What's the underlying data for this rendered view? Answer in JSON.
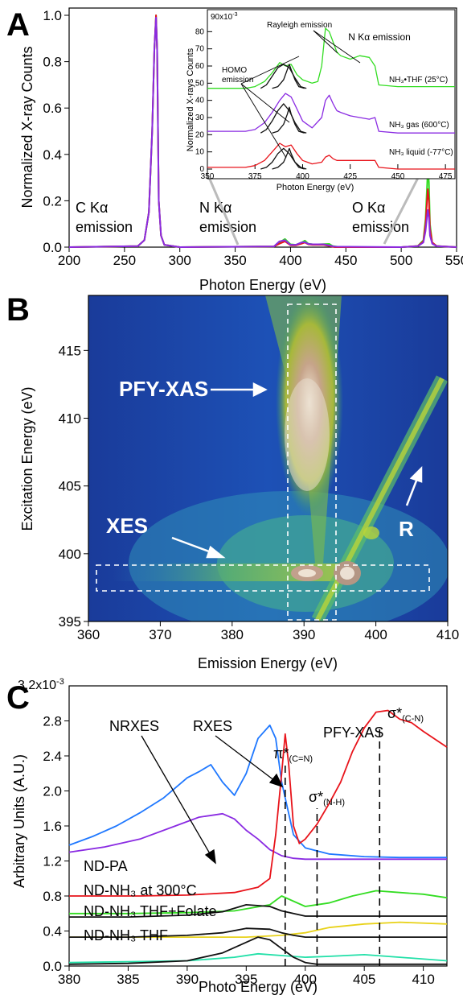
{
  "colors": {
    "red": "#e8141b",
    "purple": "#8a2be2",
    "green": "#33dd22",
    "blue": "#1f78ff",
    "black": "#111111",
    "yellow": "#e8d21a",
    "teal": "#22e0a8",
    "gray": "#bbbbbb"
  },
  "chart_data": [
    {
      "type": "line",
      "panel": "A",
      "xlabel": "Photon Energy (eV)",
      "ylabel": "Normalized X-ray Counts",
      "xlim": [
        200,
        550
      ],
      "ylim": [
        0,
        1.0
      ],
      "xticks": [
        "200",
        "250",
        "300",
        "350",
        "400",
        "450",
        "500",
        "550"
      ],
      "yticks": [
        "0.0",
        "0.2",
        "0.4",
        "0.6",
        "0.8",
        "1.0"
      ],
      "annotations": [
        {
          "line1": "C Kα",
          "line2": "emission"
        },
        {
          "line1": "N Kα",
          "line2": "emission"
        },
        {
          "line1": "O Kα",
          "line2": "emission"
        }
      ],
      "series": [
        {
          "color": "green",
          "x": [
            200,
            262,
            268,
            272,
            275,
            277,
            278.5,
            279.5,
            281,
            283,
            286,
            300,
            385,
            390,
            395,
            400,
            405,
            410,
            413,
            416,
            420,
            425,
            430,
            435,
            438,
            445,
            500,
            515,
            520,
            522,
            524,
            525,
            526,
            528,
            532,
            550
          ],
          "y": [
            0,
            0.004,
            0.03,
            0.15,
            0.5,
            0.85,
            1.0,
            0.85,
            0.2,
            0.05,
            0.01,
            0,
            0.003,
            0.02,
            0.035,
            0.012,
            0.01,
            0.02,
            0.028,
            0.015,
            0.012,
            0.012,
            0.013,
            0.014,
            0.005,
            0,
            0,
            0.005,
            0.03,
            0.12,
            0.33,
            0.28,
            0.1,
            0.02,
            0.005,
            0
          ]
        },
        {
          "color": "red",
          "x": [
            200,
            262,
            268,
            272,
            275,
            277,
            278.5,
            279.5,
            281,
            283,
            286,
            300,
            385,
            390,
            395,
            400,
            405,
            410,
            413,
            416,
            420,
            430,
            440,
            500,
            515,
            520,
            522,
            524,
            525,
            526,
            528,
            532,
            550
          ],
          "y": [
            0,
            0.004,
            0.03,
            0.15,
            0.5,
            0.85,
            1.0,
            0.85,
            0.2,
            0.05,
            0.01,
            0,
            0.003,
            0.015,
            0.025,
            0.008,
            0.008,
            0.015,
            0.02,
            0.012,
            0.01,
            0.01,
            0.0,
            0,
            0.005,
            0.025,
            0.1,
            0.25,
            0.2,
            0.08,
            0.02,
            0.005,
            0
          ]
        },
        {
          "color": "purple",
          "x": [
            200,
            262,
            268,
            272,
            275,
            277,
            278.5,
            279.5,
            281,
            283,
            286,
            300,
            385,
            390,
            395,
            400,
            405,
            410,
            413,
            416,
            420,
            430,
            440,
            500,
            515,
            520,
            522,
            524,
            525,
            526,
            528,
            532,
            550
          ],
          "y": [
            0,
            0.004,
            0.03,
            0.15,
            0.5,
            0.85,
            0.99,
            0.85,
            0.2,
            0.05,
            0.01,
            0,
            0.003,
            0.025,
            0.03,
            0.01,
            0.01,
            0.02,
            0.022,
            0.014,
            0.012,
            0.012,
            0.002,
            0,
            0.004,
            0.02,
            0.07,
            0.16,
            0.13,
            0.05,
            0.015,
            0.004,
            0
          ]
        }
      ]
    },
    {
      "type": "line",
      "panel": "A-inset",
      "xlabel": "Photon Energy (eV)",
      "ylabel": "Normalized X-rays Counts",
      "xlim": [
        350,
        480
      ],
      "ylim": [
        0,
        90
      ],
      "y_multiplier": "90x10",
      "y_multiplier_exp": "-3",
      "xticks": [
        "350",
        "375",
        "400",
        "425",
        "450",
        "475"
      ],
      "yticks": [
        "0",
        "10",
        "20",
        "30",
        "40",
        "50",
        "60",
        "70",
        "80"
      ],
      "title": "N Kα emission",
      "annotations": [
        "Rayleigh emission",
        "HOMO",
        "emission"
      ],
      "series": [
        {
          "color": "green",
          "name": "NH₃•THF (25°C)",
          "x": [
            350,
            360,
            370,
            375,
            380,
            384,
            388,
            391,
            394,
            397,
            400,
            405,
            408,
            410,
            412,
            414,
            416,
            418,
            420,
            425,
            430,
            435,
            438,
            440,
            450,
            465,
            470,
            475,
            480
          ],
          "y": [
            47,
            47,
            47,
            48,
            51,
            56,
            62,
            60,
            61,
            55,
            52,
            50,
            51,
            60,
            82,
            80,
            74,
            68,
            66,
            64,
            66,
            65,
            60,
            49,
            48,
            48,
            48,
            48,
            48
          ]
        },
        {
          "color": "purple",
          "name": "NH₃ gas (600°C)",
          "x": [
            350,
            360,
            370,
            375,
            380,
            384,
            388,
            391,
            394,
            397,
            400,
            405,
            410,
            412,
            414,
            416,
            418,
            420,
            425,
            430,
            435,
            438,
            440,
            450,
            465,
            480
          ],
          "y": [
            22,
            22,
            22,
            23,
            27,
            33,
            40,
            44,
            42,
            35,
            28,
            24,
            30,
            40,
            43,
            38,
            34,
            33,
            31,
            30,
            29,
            30,
            22,
            21,
            21,
            21
          ]
        },
        {
          "color": "red",
          "name": "NH₃ liquid (-77°C)",
          "x": [
            350,
            360,
            370,
            375,
            380,
            384,
            388,
            391,
            394,
            397,
            400,
            405,
            410,
            412,
            414,
            416,
            418,
            420,
            425,
            430,
            435,
            438,
            440,
            450,
            465,
            480
          ],
          "y": [
            1,
            1,
            1,
            2,
            5,
            10,
            15,
            13,
            14,
            9,
            5,
            3,
            4,
            7,
            8,
            6,
            5,
            5,
            5,
            5,
            5,
            5,
            1,
            0,
            0,
            0
          ]
        },
        {
          "color": "black",
          "x": [
            378,
            381,
            384,
            387,
            390,
            393,
            396,
            399,
            402
          ],
          "y": [
            47,
            49,
            54,
            59,
            61,
            59,
            53,
            48,
            47
          ]
        },
        {
          "color": "black",
          "x": [
            384,
            387,
            390,
            392,
            393,
            394,
            396,
            398,
            401
          ],
          "y": [
            47,
            48,
            52,
            58,
            61,
            58,
            52,
            48,
            47
          ]
        },
        {
          "color": "black",
          "x": [
            378,
            381,
            384,
            387,
            390,
            393,
            396,
            399,
            402
          ],
          "y": [
            21,
            23,
            28,
            34,
            38,
            34,
            27,
            22,
            21
          ]
        },
        {
          "color": "black",
          "x": [
            384,
            387,
            390,
            392,
            393,
            394,
            396,
            398,
            401
          ],
          "y": [
            21,
            22,
            26,
            32,
            36,
            32,
            26,
            22,
            21
          ]
        },
        {
          "color": "black",
          "x": [
            378,
            381,
            384,
            387,
            390,
            393,
            396,
            399,
            402
          ],
          "y": [
            0,
            1,
            4,
            9,
            12,
            9,
            4,
            1,
            0
          ]
        },
        {
          "color": "black",
          "x": [
            384,
            387,
            390,
            392,
            393,
            394,
            396,
            398,
            401
          ],
          "y": [
            0,
            1,
            4,
            9,
            12,
            9,
            4,
            1,
            0
          ]
        }
      ]
    },
    {
      "type": "heatmap",
      "panel": "B",
      "xlabel": "Emission Energy (eV)",
      "ylabel": "Excitation Energy (eV)",
      "xlim": [
        360,
        410
      ],
      "ylim": [
        395,
        419
      ],
      "xticks": [
        "360",
        "370",
        "380",
        "390",
        "400",
        "410"
      ],
      "yticks": [
        "395",
        "400",
        "405",
        "410",
        "415"
      ],
      "labels": [
        "PFY-XAS",
        "XES",
        "R"
      ]
    },
    {
      "type": "line",
      "panel": "C",
      "xlabel": "Photo Energy (eV)",
      "ylabel": "Arbitrary Units (A.U.)",
      "xlim": [
        380,
        412
      ],
      "ylim": [
        0,
        3.2
      ],
      "y_multiplier": "3.2x10",
      "y_multiplier_exp": "-3",
      "xticks": [
        "380",
        "385",
        "390",
        "395",
        "400",
        "405",
        "410"
      ],
      "yticks": [
        "0.0",
        "0.4",
        "0.8",
        "1.2",
        "1.6",
        "2.0",
        "2.4",
        "2.8"
      ],
      "curve_labels": [
        "NRXES",
        "RXES",
        "PFY-XAS"
      ],
      "resonances": [
        {
          "main": "π*",
          "sub": "(C=N)",
          "x": 398.3
        },
        {
          "main": "σ*",
          "sub": "(N-H)",
          "x": 401.0
        },
        {
          "main": "σ*",
          "sub": "(C-N)",
          "x": 406.3
        }
      ],
      "trace_labels": [
        "ND-PA",
        "ND-NH₃ at 300°C",
        "ND-NH₃ THF+Folate",
        "ND-NH₃ THF"
      ],
      "series": [
        {
          "color": "blue",
          "x": [
            380,
            382,
            384,
            386,
            388,
            390,
            391,
            392,
            393,
            394,
            395,
            396,
            397,
            397.5,
            398,
            399,
            400,
            402,
            405,
            408,
            412
          ],
          "y": [
            1.38,
            1.48,
            1.6,
            1.75,
            1.92,
            2.15,
            2.22,
            2.3,
            2.1,
            1.95,
            2.2,
            2.6,
            2.75,
            2.6,
            2.1,
            1.5,
            1.35,
            1.28,
            1.25,
            1.24,
            1.24
          ]
        },
        {
          "color": "purple",
          "x": [
            380,
            383,
            386,
            389,
            391,
            393,
            394,
            395,
            396,
            397,
            398,
            399,
            400,
            405,
            412
          ],
          "y": [
            1.3,
            1.36,
            1.45,
            1.6,
            1.7,
            1.74,
            1.68,
            1.55,
            1.45,
            1.33,
            1.26,
            1.23,
            1.22,
            1.22,
            1.22
          ]
        },
        {
          "color": "red",
          "x": [
            380,
            386,
            390,
            394,
            396,
            397,
            397.5,
            398,
            398.3,
            398.6,
            399,
            399.5,
            400,
            401,
            402,
            403,
            404,
            405,
            406,
            407,
            408,
            409,
            410,
            412
          ],
          "y": [
            0.8,
            0.8,
            0.81,
            0.84,
            0.9,
            1.0,
            1.5,
            2.2,
            2.65,
            2.3,
            1.6,
            1.4,
            1.45,
            1.62,
            1.85,
            2.1,
            2.45,
            2.72,
            2.9,
            2.92,
            2.82,
            2.78,
            2.68,
            2.5
          ]
        },
        {
          "color": "green",
          "x": [
            380,
            385,
            390,
            394,
            397,
            398,
            400,
            402,
            404,
            406,
            408,
            410,
            412
          ],
          "y": [
            0.6,
            0.6,
            0.61,
            0.63,
            0.7,
            0.8,
            0.68,
            0.72,
            0.8,
            0.86,
            0.84,
            0.82,
            0.78
          ]
        },
        {
          "color": "black",
          "x": [
            380,
            385,
            390,
            393,
            395,
            397,
            398,
            399,
            400,
            402,
            405,
            412
          ],
          "y": [
            0.56,
            0.56,
            0.58,
            0.62,
            0.7,
            0.68,
            0.63,
            0.6,
            0.57,
            0.57,
            0.57,
            0.57
          ]
        },
        {
          "color": "yellow",
          "x": [
            380,
            395,
            398,
            400,
            402,
            405,
            408,
            412
          ],
          "y": [
            0.33,
            0.33,
            0.35,
            0.38,
            0.44,
            0.48,
            0.5,
            0.48
          ]
        },
        {
          "color": "black",
          "x": [
            380,
            385,
            390,
            393,
            395,
            397,
            398,
            399,
            400,
            402,
            405,
            412
          ],
          "y": [
            0.33,
            0.33,
            0.35,
            0.38,
            0.43,
            0.42,
            0.38,
            0.35,
            0.33,
            0.33,
            0.33,
            0.33
          ]
        },
        {
          "color": "teal",
          "x": [
            380,
            385,
            390,
            394,
            396,
            398,
            400,
            402,
            405,
            408,
            412
          ],
          "y": [
            0.04,
            0.05,
            0.06,
            0.1,
            0.14,
            0.12,
            0.1,
            0.11,
            0.13,
            0.1,
            0.06
          ]
        },
        {
          "color": "black",
          "x": [
            380,
            385,
            390,
            393,
            395,
            396,
            397,
            398,
            399,
            400,
            401,
            402,
            405,
            412
          ],
          "y": [
            0.02,
            0.03,
            0.06,
            0.15,
            0.27,
            0.33,
            0.3,
            0.2,
            0.1,
            0.04,
            0.02,
            0.02,
            0.02,
            0.02
          ]
        }
      ]
    }
  ]
}
